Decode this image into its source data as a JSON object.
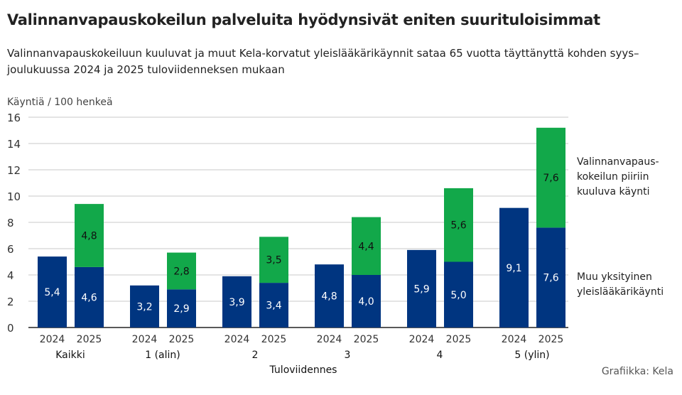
{
  "title": "Valinnanvapauskokeilun palveluita hyödynsivät eniten suurituloisimmat",
  "subtitle": "Valinnanvapauskokeiluun kuuluvat ja muut Kela-korvatut yleislääkärikäynnit sataa 65 vuotta täyttänyttä kohden syys–joulukuussa 2024 ja 2025 tuloviidenneksen mukaan",
  "credit": "Grafiikka: Kela",
  "chart_data": {
    "type": "bar",
    "stacked": true,
    "ylabel": "Käyntiä / 100 henkeä",
    "xlabel": "Tuloviidennes",
    "ylim": [
      0,
      16
    ],
    "yticks": [
      0,
      2,
      4,
      6,
      8,
      10,
      12,
      14,
      16
    ],
    "grid": true,
    "groups": [
      "Kaikki",
      "1 (alin)",
      "2",
      "3",
      "4",
      "5 (ylin)"
    ],
    "years": [
      "2024",
      "2025"
    ],
    "series": [
      {
        "name": "Muu yksityinen yleislääkärikäynti",
        "color": "#003580",
        "values": [
          [
            5.4,
            4.6
          ],
          [
            3.2,
            2.9
          ],
          [
            3.9,
            3.4
          ],
          [
            4.8,
            4.0
          ],
          [
            5.9,
            5.0
          ],
          [
            9.1,
            7.6
          ]
        ]
      },
      {
        "name": "Valinnanvapaus-kokeilun piiriin kuuluva käynti",
        "color": "#12a84a",
        "values": [
          [
            null,
            4.8
          ],
          [
            null,
            2.8
          ],
          [
            null,
            3.5
          ],
          [
            null,
            4.4
          ],
          [
            null,
            5.6
          ],
          [
            null,
            7.6
          ]
        ]
      }
    ],
    "legend_labels": [
      [
        "Muu yksityinen",
        "yleislääkärikäynti"
      ],
      [
        "Valinnanvapaus-",
        "kokeilun piiriin",
        "kuuluva käynti"
      ]
    ],
    "legend": "right"
  }
}
